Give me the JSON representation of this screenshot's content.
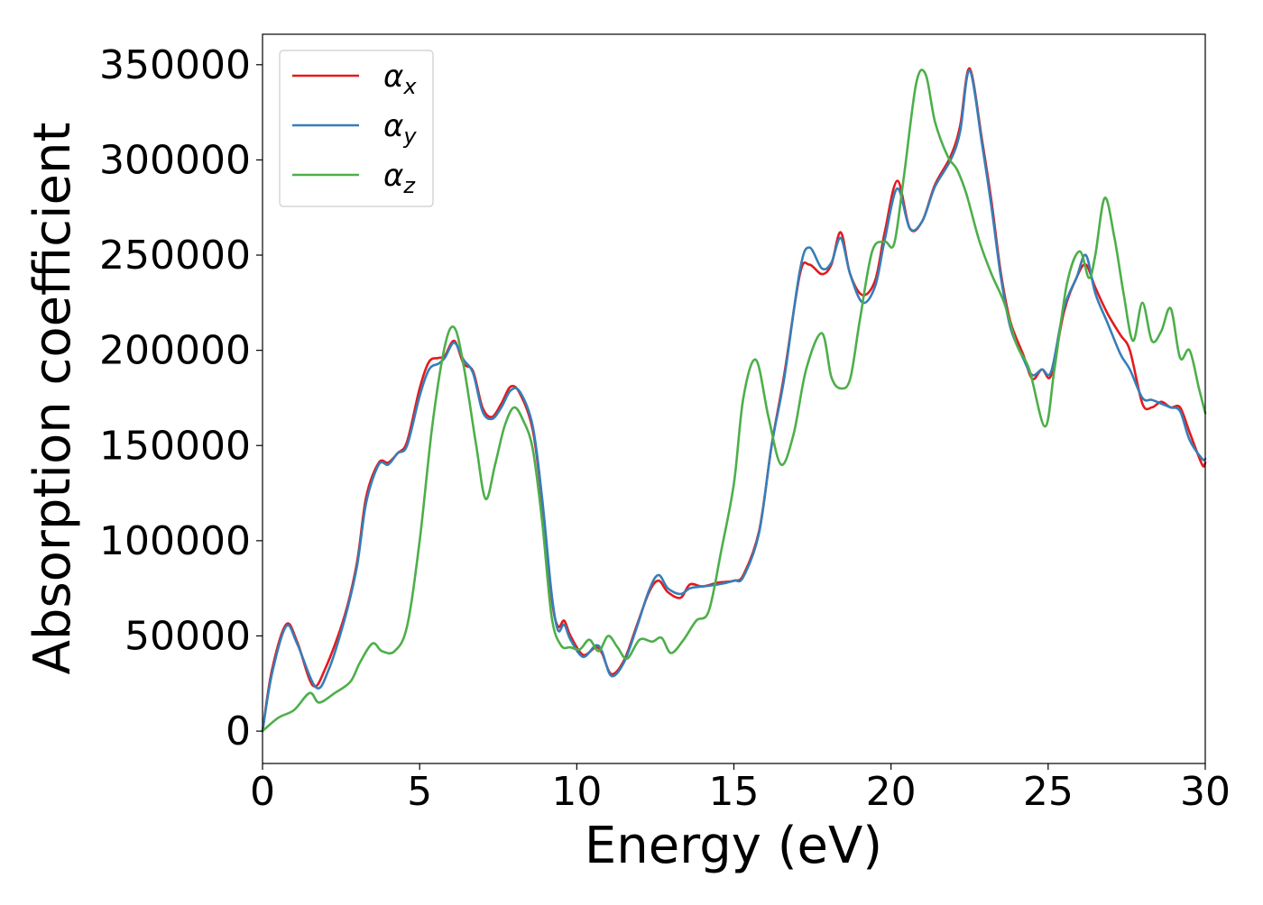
{
  "chart_data": {
    "type": "line",
    "title": "",
    "xlabel": "Energy (eV)",
    "ylabel": "Absorption coefficient",
    "xlim": [
      0,
      30
    ],
    "ylim": [
      -17000,
      366000
    ],
    "xticks": [
      0,
      5,
      10,
      15,
      20,
      25,
      30
    ],
    "yticks": [
      0,
      50000,
      100000,
      150000,
      200000,
      250000,
      300000,
      350000
    ],
    "xtick_labels": [
      "0",
      "5",
      "10",
      "15",
      "20",
      "25",
      "30"
    ],
    "ytick_labels": [
      "0",
      "50000",
      "100000",
      "150000",
      "200000",
      "250000",
      "300000",
      "350000"
    ],
    "grid": false,
    "legend_position": "top-left",
    "series": [
      {
        "name": "αx",
        "symbol": "α",
        "subscript": "x",
        "color": "#e41a1c",
        "points": [
          [
            0,
            0
          ],
          [
            0.3,
            32000
          ],
          [
            0.75,
            56000
          ],
          [
            1.1,
            47000
          ],
          [
            1.6,
            24000
          ],
          [
            2.0,
            33000
          ],
          [
            2.6,
            60000
          ],
          [
            3.0,
            88000
          ],
          [
            3.3,
            123000
          ],
          [
            3.7,
            141000
          ],
          [
            4.0,
            141000
          ],
          [
            4.3,
            146000
          ],
          [
            4.6,
            152000
          ],
          [
            5.0,
            180000
          ],
          [
            5.3,
            194000
          ],
          [
            5.6,
            196000
          ],
          [
            5.8,
            197000
          ],
          [
            6.1,
            205000
          ],
          [
            6.4,
            193000
          ],
          [
            6.7,
            189000
          ],
          [
            7.0,
            170000
          ],
          [
            7.3,
            165000
          ],
          [
            7.6,
            172000
          ],
          [
            7.9,
            181000
          ],
          [
            8.2,
            177000
          ],
          [
            8.6,
            158000
          ],
          [
            8.9,
            120000
          ],
          [
            9.2,
            70000
          ],
          [
            9.4,
            55000
          ],
          [
            9.6,
            58000
          ],
          [
            9.8,
            50000
          ],
          [
            10.2,
            40000
          ],
          [
            10.6,
            44000
          ],
          [
            10.8,
            41000
          ],
          [
            11.1,
            30000
          ],
          [
            11.5,
            37000
          ],
          [
            11.9,
            55000
          ],
          [
            12.3,
            73000
          ],
          [
            12.6,
            79000
          ],
          [
            12.9,
            73000
          ],
          [
            13.3,
            70000
          ],
          [
            13.6,
            77000
          ],
          [
            14.0,
            76000
          ],
          [
            14.5,
            78000
          ],
          [
            15.0,
            79000
          ],
          [
            15.3,
            82000
          ],
          [
            15.8,
            105000
          ],
          [
            16.2,
            150000
          ],
          [
            16.6,
            187000
          ],
          [
            17.1,
            240000
          ],
          [
            17.4,
            245000
          ],
          [
            17.8,
            240000
          ],
          [
            18.1,
            245000
          ],
          [
            18.4,
            262000
          ],
          [
            18.7,
            240000
          ],
          [
            19.1,
            229000
          ],
          [
            19.5,
            237000
          ],
          [
            19.8,
            262000
          ],
          [
            20.2,
            289000
          ],
          [
            20.6,
            264000
          ],
          [
            21.0,
            268000
          ],
          [
            21.4,
            287000
          ],
          [
            21.9,
            302000
          ],
          [
            22.2,
            318000
          ],
          [
            22.5,
            348000
          ],
          [
            22.9,
            310000
          ],
          [
            23.2,
            278000
          ],
          [
            23.5,
            240000
          ],
          [
            23.8,
            215000
          ],
          [
            24.2,
            198000
          ],
          [
            24.5,
            185000
          ],
          [
            24.8,
            190000
          ],
          [
            25.1,
            187000
          ],
          [
            25.5,
            220000
          ],
          [
            25.9,
            238000
          ],
          [
            26.2,
            245000
          ],
          [
            26.5,
            233000
          ],
          [
            26.9,
            219000
          ],
          [
            27.3,
            208000
          ],
          [
            27.6,
            200000
          ],
          [
            28.0,
            172000
          ],
          [
            28.3,
            170000
          ],
          [
            28.6,
            173000
          ],
          [
            28.9,
            170000
          ],
          [
            29.2,
            170000
          ],
          [
            29.5,
            157000
          ],
          [
            29.9,
            140000
          ],
          [
            30,
            141000
          ]
        ]
      },
      {
        "name": "αy",
        "symbol": "α",
        "subscript": "y",
        "color": "#377eb8",
        "points": [
          [
            0,
            0
          ],
          [
            0.3,
            30000
          ],
          [
            0.75,
            55000
          ],
          [
            1.1,
            46000
          ],
          [
            1.7,
            23000
          ],
          [
            2.1,
            32000
          ],
          [
            2.6,
            58000
          ],
          [
            3.0,
            86000
          ],
          [
            3.3,
            120000
          ],
          [
            3.7,
            140000
          ],
          [
            4.0,
            140000
          ],
          [
            4.3,
            146000
          ],
          [
            4.6,
            150000
          ],
          [
            5.0,
            176000
          ],
          [
            5.3,
            190000
          ],
          [
            5.6,
            193000
          ],
          [
            5.8,
            196000
          ],
          [
            6.1,
            204000
          ],
          [
            6.4,
            195000
          ],
          [
            6.7,
            188000
          ],
          [
            7.0,
            168000
          ],
          [
            7.3,
            164000
          ],
          [
            7.6,
            170000
          ],
          [
            7.9,
            179000
          ],
          [
            8.2,
            178000
          ],
          [
            8.6,
            160000
          ],
          [
            8.9,
            122000
          ],
          [
            9.2,
            72000
          ],
          [
            9.4,
            53000
          ],
          [
            9.6,
            56000
          ],
          [
            9.8,
            48000
          ],
          [
            10.2,
            39000
          ],
          [
            10.6,
            45000
          ],
          [
            10.8,
            42000
          ],
          [
            11.1,
            29000
          ],
          [
            11.5,
            36000
          ],
          [
            11.9,
            54000
          ],
          [
            12.3,
            74000
          ],
          [
            12.6,
            82000
          ],
          [
            12.9,
            75000
          ],
          [
            13.3,
            72000
          ],
          [
            13.6,
            75000
          ],
          [
            14.0,
            76000
          ],
          [
            14.5,
            77000
          ],
          [
            15.0,
            79000
          ],
          [
            15.3,
            81000
          ],
          [
            15.8,
            104000
          ],
          [
            16.2,
            150000
          ],
          [
            16.6,
            185000
          ],
          [
            17.1,
            242000
          ],
          [
            17.4,
            254000
          ],
          [
            17.8,
            243000
          ],
          [
            18.1,
            246000
          ],
          [
            18.4,
            259000
          ],
          [
            18.7,
            240000
          ],
          [
            19.1,
            225000
          ],
          [
            19.5,
            234000
          ],
          [
            19.8,
            258000
          ],
          [
            20.2,
            285000
          ],
          [
            20.6,
            264000
          ],
          [
            21.0,
            268000
          ],
          [
            21.4,
            286000
          ],
          [
            21.9,
            300000
          ],
          [
            22.2,
            315000
          ],
          [
            22.5,
            347000
          ],
          [
            22.9,
            308000
          ],
          [
            23.2,
            275000
          ],
          [
            23.5,
            238000
          ],
          [
            23.8,
            212000
          ],
          [
            24.2,
            196000
          ],
          [
            24.5,
            187000
          ],
          [
            24.8,
            190000
          ],
          [
            25.1,
            189000
          ],
          [
            25.5,
            222000
          ],
          [
            25.9,
            238000
          ],
          [
            26.2,
            250000
          ],
          [
            26.5,
            230000
          ],
          [
            26.9,
            214000
          ],
          [
            27.3,
            198000
          ],
          [
            27.6,
            190000
          ],
          [
            28.0,
            175000
          ],
          [
            28.3,
            174000
          ],
          [
            28.6,
            172000
          ],
          [
            28.9,
            170000
          ],
          [
            29.2,
            168000
          ],
          [
            29.5,
            153000
          ],
          [
            29.9,
            143000
          ],
          [
            30,
            143000
          ]
        ]
      },
      {
        "name": "αz",
        "symbol": "α",
        "subscript": "z",
        "color": "#4daf4a",
        "points": [
          [
            0,
            0
          ],
          [
            0.5,
            7000
          ],
          [
            1.0,
            11000
          ],
          [
            1.5,
            20000
          ],
          [
            1.8,
            15000
          ],
          [
            2.3,
            20000
          ],
          [
            2.8,
            26000
          ],
          [
            3.1,
            36000
          ],
          [
            3.5,
            46000
          ],
          [
            3.8,
            42000
          ],
          [
            4.2,
            42000
          ],
          [
            4.6,
            55000
          ],
          [
            5.0,
            100000
          ],
          [
            5.4,
            160000
          ],
          [
            5.8,
            202000
          ],
          [
            6.1,
            212000
          ],
          [
            6.4,
            192000
          ],
          [
            6.8,
            150000
          ],
          [
            7.1,
            122000
          ],
          [
            7.4,
            140000
          ],
          [
            7.7,
            160000
          ],
          [
            8.0,
            170000
          ],
          [
            8.3,
            163000
          ],
          [
            8.6,
            148000
          ],
          [
            8.9,
            110000
          ],
          [
            9.2,
            60000
          ],
          [
            9.5,
            45000
          ],
          [
            9.8,
            44000
          ],
          [
            10.1,
            43000
          ],
          [
            10.4,
            48000
          ],
          [
            10.7,
            42000
          ],
          [
            11.0,
            50000
          ],
          [
            11.3,
            44000
          ],
          [
            11.6,
            38000
          ],
          [
            12.0,
            48000
          ],
          [
            12.4,
            47000
          ],
          [
            12.7,
            49000
          ],
          [
            13.0,
            41000
          ],
          [
            13.4,
            48000
          ],
          [
            13.8,
            58000
          ],
          [
            14.2,
            63000
          ],
          [
            14.6,
            95000
          ],
          [
            15.0,
            130000
          ],
          [
            15.3,
            175000
          ],
          [
            15.7,
            195000
          ],
          [
            16.1,
            165000
          ],
          [
            16.5,
            140000
          ],
          [
            16.9,
            156000
          ],
          [
            17.3,
            190000
          ],
          [
            17.8,
            209000
          ],
          [
            18.1,
            186000
          ],
          [
            18.4,
            180000
          ],
          [
            18.7,
            185000
          ],
          [
            19.0,
            215000
          ],
          [
            19.4,
            252000
          ],
          [
            19.8,
            257000
          ],
          [
            20.1,
            256000
          ],
          [
            20.4,
            290000
          ],
          [
            20.8,
            340000
          ],
          [
            21.1,
            345000
          ],
          [
            21.4,
            320000
          ],
          [
            21.8,
            302000
          ],
          [
            22.1,
            295000
          ],
          [
            22.4,
            282000
          ],
          [
            22.8,
            258000
          ],
          [
            23.2,
            240000
          ],
          [
            23.6,
            225000
          ],
          [
            24.0,
            203000
          ],
          [
            24.4,
            190000
          ],
          [
            24.9,
            160000
          ],
          [
            25.2,
            190000
          ],
          [
            25.6,
            235000
          ],
          [
            26.0,
            252000
          ],
          [
            26.3,
            238000
          ],
          [
            26.5,
            250000
          ],
          [
            26.8,
            280000
          ],
          [
            27.1,
            260000
          ],
          [
            27.4,
            230000
          ],
          [
            27.7,
            205000
          ],
          [
            28.0,
            225000
          ],
          [
            28.3,
            205000
          ],
          [
            28.6,
            210000
          ],
          [
            28.9,
            222000
          ],
          [
            29.2,
            196000
          ],
          [
            29.5,
            200000
          ],
          [
            29.8,
            180000
          ],
          [
            30,
            167000
          ]
        ]
      }
    ]
  }
}
